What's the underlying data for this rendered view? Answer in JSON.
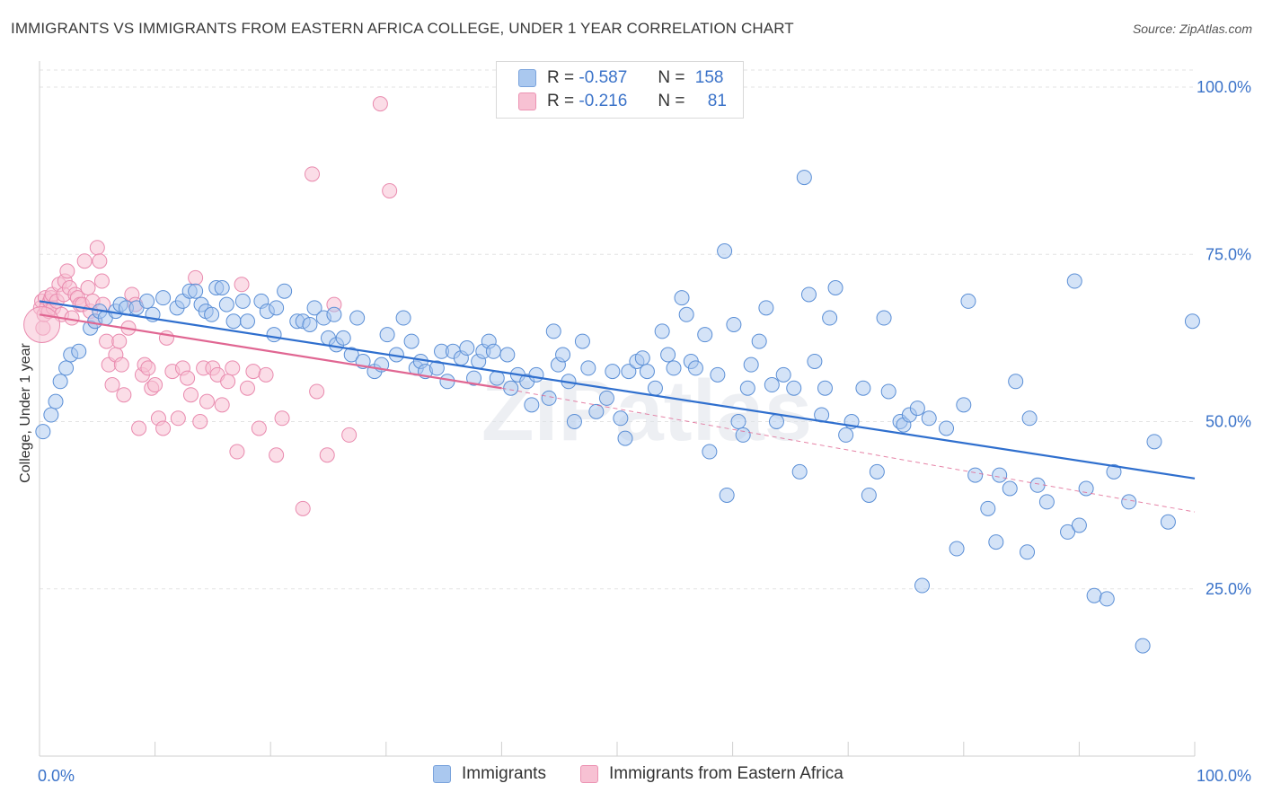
{
  "title": "IMMIGRANTS VS IMMIGRANTS FROM EASTERN AFRICA COLLEGE, UNDER 1 YEAR CORRELATION CHART",
  "source": "Source: ZipAtlas.com",
  "watermark": "ZIPatlas",
  "legend_top": {
    "rows": [
      {
        "r_label": "R =",
        "r_value": "-0.587",
        "n_label": "N =",
        "n_value": "158"
      },
      {
        "r_label": "R =",
        "r_value": "-0.216",
        "n_label": "N =",
        "n_value": "81"
      }
    ]
  },
  "legend_bottom": [
    "Immigrants",
    "Immigrants from Eastern Africa"
  ],
  "colors": {
    "blue_fill": "#aac8ef",
    "blue_stroke": "#5b8fd6",
    "blue_line": "#2f6fce",
    "pink_fill": "#f7c1d3",
    "pink_stroke": "#e98aae",
    "pink_line": "#e06692",
    "tick_label": "#3b73c9",
    "grid": "#e3e3e3"
  },
  "chart_data": {
    "type": "scatter",
    "title": "IMMIGRANTS VS IMMIGRANTS FROM EASTERN AFRICA COLLEGE, UNDER 1 YEAR CORRELATION CHART",
    "xlabel": "",
    "ylabel": "College, Under 1 year",
    "xlim": [
      0,
      100
    ],
    "ylim": [
      0,
      105
    ],
    "x_tick_labels": [
      "0.0%",
      "100.0%"
    ],
    "y_ticks": [
      25,
      50,
      75,
      100
    ],
    "y_tick_labels": [
      "25.0%",
      "50.0%",
      "75.0%",
      "100.0%"
    ],
    "grid": true,
    "legend_position": "top-center",
    "series": [
      {
        "name": "Immigrants",
        "R": -0.587,
        "N": 158,
        "trend": {
          "x": [
            0,
            100
          ],
          "y": [
            68.0,
            41.5
          ]
        },
        "points": [
          [
            0.3,
            48.5
          ],
          [
            1.0,
            51
          ],
          [
            1.4,
            53
          ],
          [
            1.8,
            56
          ],
          [
            2.3,
            58
          ],
          [
            2.7,
            60
          ],
          [
            3.4,
            60.5
          ],
          [
            4.4,
            64
          ],
          [
            4.8,
            65
          ],
          [
            5.2,
            66.5
          ],
          [
            5.7,
            65.5
          ],
          [
            6.6,
            66.5
          ],
          [
            7.0,
            67.5
          ],
          [
            7.5,
            67
          ],
          [
            8.4,
            67
          ],
          [
            9.3,
            68
          ],
          [
            9.8,
            66
          ],
          [
            10.7,
            68.5
          ],
          [
            11.9,
            67
          ],
          [
            12.4,
            68
          ],
          [
            13.0,
            69.5
          ],
          [
            13.5,
            69.5
          ],
          [
            14.0,
            67.5
          ],
          [
            14.4,
            66.5
          ],
          [
            14.9,
            66
          ],
          [
            15.3,
            70
          ],
          [
            15.8,
            70
          ],
          [
            16.2,
            67.5
          ],
          [
            16.8,
            65
          ],
          [
            17.6,
            68
          ],
          [
            18.0,
            65
          ],
          [
            19.2,
            68
          ],
          [
            19.7,
            66.5
          ],
          [
            20.3,
            63
          ],
          [
            20.5,
            67
          ],
          [
            21.2,
            69.5
          ],
          [
            22.3,
            65
          ],
          [
            22.8,
            65
          ],
          [
            23.4,
            64.5
          ],
          [
            23.8,
            67
          ],
          [
            24.6,
            65.5
          ],
          [
            25.0,
            62.5
          ],
          [
            25.5,
            66
          ],
          [
            25.7,
            61.5
          ],
          [
            26.3,
            62.5
          ],
          [
            27.0,
            60
          ],
          [
            27.5,
            65.5
          ],
          [
            28.0,
            59
          ],
          [
            29.0,
            57.5
          ],
          [
            29.6,
            58.5
          ],
          [
            30.1,
            63
          ],
          [
            30.9,
            60
          ],
          [
            31.5,
            65.5
          ],
          [
            32.2,
            62
          ],
          [
            32.6,
            58
          ],
          [
            33.0,
            59
          ],
          [
            33.4,
            57.5
          ],
          [
            34.4,
            58
          ],
          [
            34.8,
            60.5
          ],
          [
            35.3,
            56
          ],
          [
            35.8,
            60.5
          ],
          [
            36.5,
            59.5
          ],
          [
            37.0,
            61
          ],
          [
            37.6,
            56.5
          ],
          [
            38.0,
            59
          ],
          [
            38.4,
            60.5
          ],
          [
            38.9,
            62
          ],
          [
            39.3,
            60.5
          ],
          [
            39.6,
            56.5
          ],
          [
            40.5,
            60
          ],
          [
            40.8,
            55
          ],
          [
            41.4,
            57
          ],
          [
            42.2,
            56
          ],
          [
            42.6,
            52.5
          ],
          [
            43.0,
            57
          ],
          [
            44.1,
            53.5
          ],
          [
            44.5,
            63.5
          ],
          [
            44.9,
            58.5
          ],
          [
            45.3,
            60
          ],
          [
            45.8,
            56
          ],
          [
            46.3,
            50
          ],
          [
            47.0,
            62
          ],
          [
            47.5,
            58
          ],
          [
            48.2,
            51.5
          ],
          [
            49.1,
            53.5
          ],
          [
            49.6,
            57.5
          ],
          [
            50.3,
            50.5
          ],
          [
            50.7,
            47.5
          ],
          [
            51.0,
            57.5
          ],
          [
            51.7,
            59
          ],
          [
            52.2,
            59.5
          ],
          [
            52.6,
            57.5
          ],
          [
            53.3,
            55
          ],
          [
            53.9,
            63.5
          ],
          [
            54.4,
            60
          ],
          [
            54.9,
            58
          ],
          [
            55.6,
            68.5
          ],
          [
            56.0,
            66
          ],
          [
            56.4,
            59
          ],
          [
            56.8,
            58
          ],
          [
            57.6,
            63
          ],
          [
            58.0,
            45.5
          ],
          [
            58.7,
            57
          ],
          [
            59.3,
            75.5
          ],
          [
            59.5,
            39
          ],
          [
            60.1,
            64.5
          ],
          [
            60.5,
            50
          ],
          [
            60.9,
            48
          ],
          [
            61.3,
            55
          ],
          [
            61.6,
            58.5
          ],
          [
            62.3,
            62
          ],
          [
            62.9,
            67
          ],
          [
            63.4,
            55.5
          ],
          [
            63.8,
            50
          ],
          [
            64.4,
            57
          ],
          [
            65.3,
            55
          ],
          [
            65.8,
            42.5
          ],
          [
            66.2,
            86.5
          ],
          [
            66.6,
            69
          ],
          [
            67.1,
            59
          ],
          [
            67.7,
            51
          ],
          [
            68.0,
            55
          ],
          [
            68.4,
            65.5
          ],
          [
            68.9,
            70
          ],
          [
            69.8,
            48
          ],
          [
            70.3,
            50
          ],
          [
            71.3,
            55
          ],
          [
            71.8,
            39
          ],
          [
            72.5,
            42.5
          ],
          [
            73.1,
            65.5
          ],
          [
            73.5,
            54.5
          ],
          [
            74.5,
            50
          ],
          [
            74.8,
            49.5
          ],
          [
            75.3,
            51
          ],
          [
            76.0,
            52
          ],
          [
            76.4,
            25.5
          ],
          [
            77.0,
            50.5
          ],
          [
            78.5,
            49
          ],
          [
            79.4,
            31
          ],
          [
            80.0,
            52.5
          ],
          [
            80.4,
            68
          ],
          [
            81.0,
            42
          ],
          [
            82.1,
            37
          ],
          [
            82.8,
            32
          ],
          [
            83.1,
            42
          ],
          [
            84.0,
            40
          ],
          [
            84.5,
            56
          ],
          [
            85.5,
            30.5
          ],
          [
            85.7,
            50.5
          ],
          [
            86.4,
            40.5
          ],
          [
            87.2,
            38
          ],
          [
            89.0,
            33.5
          ],
          [
            89.6,
            71
          ],
          [
            90.0,
            34.5
          ],
          [
            90.6,
            40
          ],
          [
            91.3,
            24
          ],
          [
            92.4,
            23.5
          ],
          [
            93.0,
            42.5
          ],
          [
            94.3,
            38
          ],
          [
            95.5,
            16.5
          ],
          [
            96.5,
            47
          ],
          [
            97.7,
            35
          ],
          [
            99.8,
            65
          ]
        ]
      },
      {
        "name": "Immigrants from Eastern Africa",
        "R": -0.216,
        "N": 81,
        "trend": {
          "x": [
            0,
            40
          ],
          "y": [
            66.0,
            55.0
          ]
        },
        "trend_dashed": {
          "x": [
            40,
            100
          ],
          "y": [
            55.0,
            36.5
          ]
        },
        "points": [
          [
            0.1,
            67
          ],
          [
            0.2,
            68
          ],
          [
            0.3,
            64
          ],
          [
            0.4,
            66
          ],
          [
            0.5,
            68.5
          ],
          [
            0.6,
            67
          ],
          [
            0.8,
            66.5
          ],
          [
            0.9,
            68
          ],
          [
            1.0,
            68.5
          ],
          [
            1.1,
            69
          ],
          [
            1.2,
            67
          ],
          [
            1.5,
            68
          ],
          [
            1.7,
            70.5
          ],
          [
            1.9,
            66
          ],
          [
            2.1,
            69
          ],
          [
            2.2,
            71
          ],
          [
            2.4,
            72.5
          ],
          [
            2.6,
            70
          ],
          [
            2.8,
            65.5
          ],
          [
            3.1,
            69
          ],
          [
            3.3,
            68.5
          ],
          [
            3.5,
            67.5
          ],
          [
            3.7,
            67.5
          ],
          [
            3.9,
            74
          ],
          [
            4.2,
            70
          ],
          [
            4.4,
            66.5
          ],
          [
            4.6,
            68
          ],
          [
            4.8,
            65
          ],
          [
            5.0,
            76
          ],
          [
            5.2,
            74
          ],
          [
            5.4,
            71
          ],
          [
            5.5,
            67.5
          ],
          [
            5.8,
            62
          ],
          [
            6.0,
            58.5
          ],
          [
            6.3,
            55.5
          ],
          [
            6.6,
            60
          ],
          [
            6.9,
            62
          ],
          [
            7.1,
            58.5
          ],
          [
            7.3,
            54
          ],
          [
            7.7,
            64
          ],
          [
            8.0,
            69
          ],
          [
            8.3,
            67.5
          ],
          [
            8.6,
            49
          ],
          [
            8.9,
            57
          ],
          [
            9.1,
            58.5
          ],
          [
            9.4,
            58
          ],
          [
            9.7,
            55
          ],
          [
            10.0,
            55.5
          ],
          [
            10.3,
            50.5
          ],
          [
            10.7,
            49
          ],
          [
            11.0,
            62.5
          ],
          [
            11.5,
            57.5
          ],
          [
            12.0,
            50.5
          ],
          [
            12.4,
            58
          ],
          [
            12.8,
            56.5
          ],
          [
            13.1,
            54
          ],
          [
            13.5,
            71.5
          ],
          [
            13.9,
            50
          ],
          [
            14.2,
            58
          ],
          [
            14.5,
            53
          ],
          [
            15.0,
            58
          ],
          [
            15.4,
            57
          ],
          [
            15.8,
            52.5
          ],
          [
            16.3,
            56
          ],
          [
            16.7,
            58
          ],
          [
            17.1,
            45.5
          ],
          [
            17.5,
            70.5
          ],
          [
            18.0,
            55
          ],
          [
            18.5,
            57.5
          ],
          [
            19.0,
            49
          ],
          [
            19.6,
            57
          ],
          [
            20.5,
            45
          ],
          [
            21.0,
            50.5
          ],
          [
            22.8,
            37
          ],
          [
            23.6,
            87
          ],
          [
            24.0,
            54.5
          ],
          [
            24.9,
            45
          ],
          [
            25.5,
            67.5
          ],
          [
            26.8,
            48
          ],
          [
            29.5,
            97.5
          ],
          [
            30.3,
            84.5
          ]
        ]
      }
    ]
  }
}
